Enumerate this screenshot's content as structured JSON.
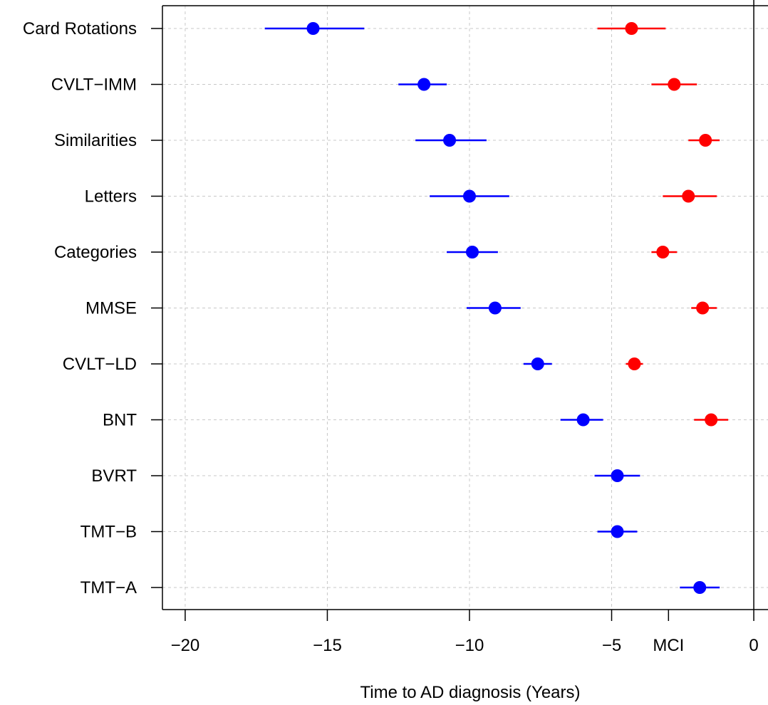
{
  "chart_data": {
    "type": "scatter",
    "title": "",
    "xlabel": "Time to AD diagnosis (Years)",
    "ylabel": "",
    "xlim": [
      -20.8,
      0.5
    ],
    "x_ticks": [
      {
        "value": -20,
        "label": "−20"
      },
      {
        "value": -15,
        "label": "−15"
      },
      {
        "value": -10,
        "label": "−10"
      },
      {
        "value": -5,
        "label": "−5"
      },
      {
        "value": -3,
        "label": "MCI"
      },
      {
        "value": 0,
        "label": "0"
      }
    ],
    "vertical_reference_line": 0,
    "grid": true,
    "categories": [
      "Card Rotations",
      "CVLT−IMM",
      "Similarities",
      "Letters",
      "Categories",
      "MMSE",
      "CVLT−LD",
      "BNT",
      "BVRT",
      "TMT−B",
      "TMT−A"
    ],
    "series": [
      {
        "color": "#0000ff",
        "points": [
          {
            "category": "Card Rotations",
            "x": -15.5,
            "low": -17.2,
            "high": -13.7
          },
          {
            "category": "CVLT−IMM",
            "x": -11.6,
            "low": -12.5,
            "high": -10.8
          },
          {
            "category": "Similarities",
            "x": -10.7,
            "low": -11.9,
            "high": -9.4
          },
          {
            "category": "Letters",
            "x": -10.0,
            "low": -11.4,
            "high": -8.6
          },
          {
            "category": "Categories",
            "x": -9.9,
            "low": -10.8,
            "high": -9.0
          },
          {
            "category": "MMSE",
            "x": -9.1,
            "low": -10.1,
            "high": -8.2
          },
          {
            "category": "CVLT−LD",
            "x": -7.6,
            "low": -8.1,
            "high": -7.1
          },
          {
            "category": "BNT",
            "x": -6.0,
            "low": -6.8,
            "high": -5.3
          },
          {
            "category": "BVRT",
            "x": -4.8,
            "low": -5.6,
            "high": -4.0
          },
          {
            "category": "TMT−B",
            "x": -4.8,
            "low": -5.5,
            "high": -4.1
          },
          {
            "category": "TMT−A",
            "x": -1.9,
            "low": -2.6,
            "high": -1.2
          }
        ]
      },
      {
        "color": "#ff0000",
        "points": [
          {
            "category": "Card Rotations",
            "x": -4.3,
            "low": -5.5,
            "high": -3.1
          },
          {
            "category": "CVLT−IMM",
            "x": -2.8,
            "low": -3.6,
            "high": -2.0
          },
          {
            "category": "Similarities",
            "x": -1.7,
            "low": -2.3,
            "high": -1.2
          },
          {
            "category": "Letters",
            "x": -2.3,
            "low": -3.2,
            "high": -1.3
          },
          {
            "category": "Categories",
            "x": -3.2,
            "low": -3.6,
            "high": -2.7
          },
          {
            "category": "MMSE",
            "x": -1.8,
            "low": -2.2,
            "high": -1.3
          },
          {
            "category": "CVLT−LD",
            "x": -4.2,
            "low": -4.5,
            "high": -3.9
          },
          {
            "category": "BNT",
            "x": -1.5,
            "low": -2.1,
            "high": -0.9
          },
          {
            "category": "BVRT",
            "x": null,
            "low": null,
            "high": null
          },
          {
            "category": "TMT−B",
            "x": null,
            "low": null,
            "high": null
          },
          {
            "category": "TMT−A",
            "x": null,
            "low": null,
            "high": null
          }
        ]
      }
    ]
  }
}
